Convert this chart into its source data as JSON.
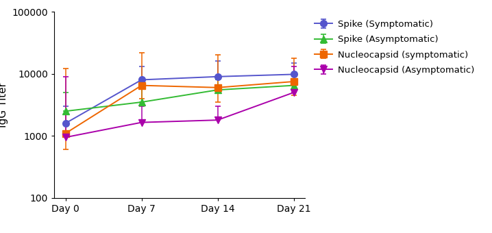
{
  "x_labels": [
    "Day 0",
    "Day 7",
    "Day 14",
    "Day 21"
  ],
  "x_values": [
    0,
    1,
    2,
    3
  ],
  "series": [
    {
      "label": "Spike (Symptomatic)",
      "color": "#5555cc",
      "marker": "o",
      "marker_size": 7,
      "values": [
        1600,
        8000,
        9000,
        9800
      ],
      "err_low": [
        1600,
        8000,
        9000,
        9800
      ],
      "err_high": [
        3000,
        13000,
        16000,
        15000
      ]
    },
    {
      "label": "Spike (Asymptomatic)",
      "color": "#33bb33",
      "marker": "^",
      "marker_size": 7,
      "values": [
        2500,
        3500,
        5500,
        6500
      ],
      "err_low": [
        2500,
        3500,
        5500,
        6500
      ],
      "err_high": [
        5000,
        7000,
        8000,
        8000
      ]
    },
    {
      "label": "Nucleocapsid (symptomatic)",
      "color": "#ee6600",
      "marker": "s",
      "marker_size": 7,
      "values": [
        1100,
        6500,
        6000,
        7500
      ],
      "err_low": [
        600,
        4000,
        3500,
        4500
      ],
      "err_high": [
        12000,
        22000,
        20000,
        18000
      ]
    },
    {
      "label": "Nucleocapsid (Asymptomatic)",
      "color": "#aa00aa",
      "marker": "v",
      "marker_size": 7,
      "values": [
        950,
        1650,
        1800,
        5000
      ],
      "err_low": [
        950,
        1650,
        1800,
        5000
      ],
      "err_high": [
        9000,
        3000,
        3000,
        13000
      ]
    }
  ],
  "ylabel": "IgG Titer",
  "ylim": [
    100,
    100000
  ],
  "yticks": [
    100,
    1000,
    10000,
    100000
  ],
  "background_color": "#ffffff",
  "legend_fontsize": 9.5,
  "axis_fontsize": 11,
  "tick_fontsize": 10
}
